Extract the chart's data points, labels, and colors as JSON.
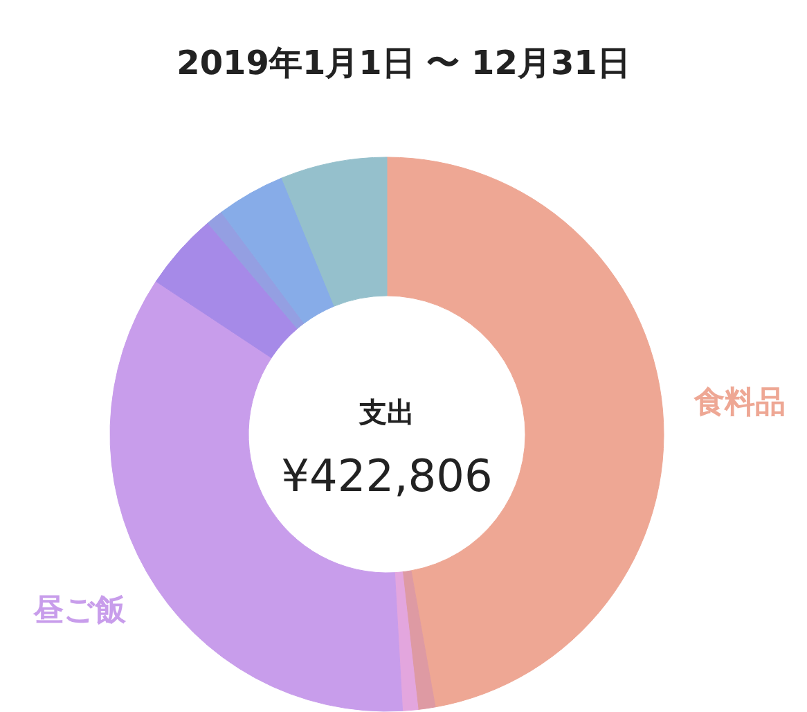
{
  "chart_data": {
    "type": "donut",
    "title": "2019年1月1日 〜 12月31日",
    "categories": [
      "食料品",
      null,
      null,
      "昼ご飯",
      null,
      null,
      null,
      null
    ],
    "values": [
      47.2,
      1.0,
      0.9,
      35.2,
      4.5,
      1.0,
      4.0,
      6.2
    ],
    "colors": [
      "#eea794",
      "#de9aa3",
      "#e3a6de",
      "#c89deb",
      "#a68ae8",
      "#949fe2",
      "#87ace8",
      "#95c0cc"
    ],
    "annotations": [
      "支出",
      "¥422,806"
    ]
  }
}
